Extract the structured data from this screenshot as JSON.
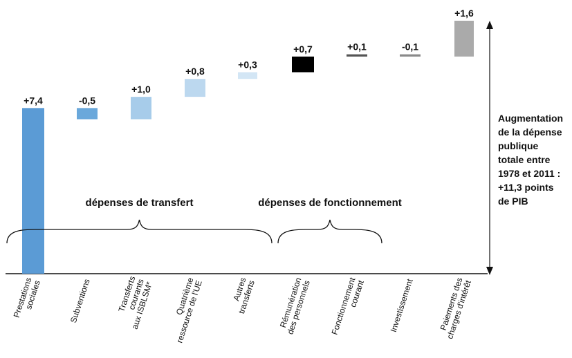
{
  "chart_data": {
    "type": "waterfall",
    "title": "",
    "xlabel": "",
    "ylabel": "",
    "unit": "points de PIB",
    "ylim": [
      0,
      11.3
    ],
    "categories": [
      [
        "Prestations",
        "sociales"
      ],
      [
        "Subventions"
      ],
      [
        "Transferts",
        "courants",
        "aux ISBLSM*"
      ],
      [
        "Quatrième",
        "ressource de l'UE"
      ],
      [
        "Autres",
        "transferts"
      ],
      [
        "Rémunération",
        "des personnels"
      ],
      [
        "Fonctionnement",
        "courant"
      ],
      [
        "Investissement"
      ],
      [
        "Paiements des",
        "charges d'intérêt"
      ]
    ],
    "values": [
      7.4,
      -0.5,
      1.0,
      0.8,
      0.3,
      0.7,
      0.1,
      -0.1,
      1.6
    ],
    "value_labels": [
      "+7,4",
      "-0,5",
      "+1,0",
      "+0,8",
      "+0,3",
      "+0,7",
      "+0,1",
      "-0,1",
      "+1,6"
    ],
    "colors": [
      "#5b9bd5",
      "#6aa8db",
      "#a7ccea",
      "#bcd8ef",
      "#d3e6f5",
      "#000000",
      "#555555",
      "#8a8a8a",
      "#aaaaaa"
    ],
    "groups": [
      {
        "label": "dépenses de transfert",
        "from": 0,
        "to": 4
      },
      {
        "label": "dépenses de fonctionnement",
        "from": 5,
        "to": 6
      }
    ],
    "total_note": [
      "Augmentation",
      "de la dépense",
      "publique",
      "totale entre",
      "1978 et 2011 :",
      "+11,3 points",
      "de PIB"
    ],
    "legend": "none",
    "grid": false
  }
}
